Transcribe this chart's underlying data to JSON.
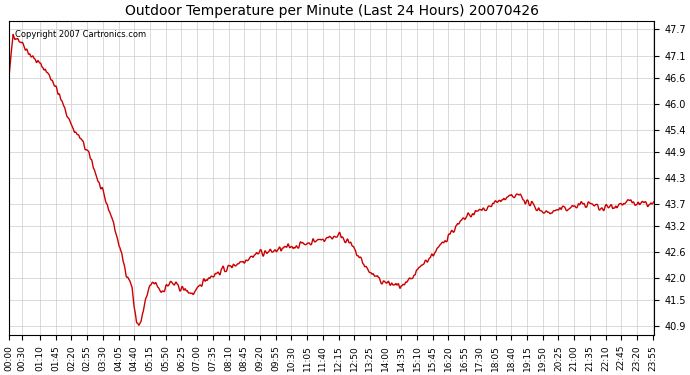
{
  "title": "Outdoor Temperature per Minute (Last 24 Hours) 20070426",
  "copyright_text": "Copyright 2007 Cartronics.com",
  "background_color": "#ffffff",
  "plot_background_color": "#ffffff",
  "grid_color": "#cccccc",
  "line_color": "#cc0000",
  "line_width": 1.0,
  "yticks": [
    40.9,
    41.5,
    42.0,
    42.6,
    43.2,
    43.7,
    44.3,
    44.9,
    45.4,
    46.0,
    46.6,
    47.1,
    47.7
  ],
  "ylim": [
    40.7,
    47.9
  ],
  "xtick_labels": [
    "00:00",
    "00:30",
    "01:10",
    "01:45",
    "02:20",
    "02:55",
    "03:30",
    "04:05",
    "04:40",
    "05:15",
    "05:50",
    "06:25",
    "07:00",
    "07:35",
    "08:10",
    "08:45",
    "09:20",
    "09:55",
    "10:30",
    "11:05",
    "11:40",
    "12:15",
    "12:50",
    "13:25",
    "14:00",
    "14:35",
    "15:10",
    "15:45",
    "16:20",
    "16:55",
    "17:30",
    "18:05",
    "18:40",
    "19:15",
    "19:50",
    "20:25",
    "21:00",
    "21:35",
    "22:10",
    "22:45",
    "23:20",
    "23:55"
  ]
}
